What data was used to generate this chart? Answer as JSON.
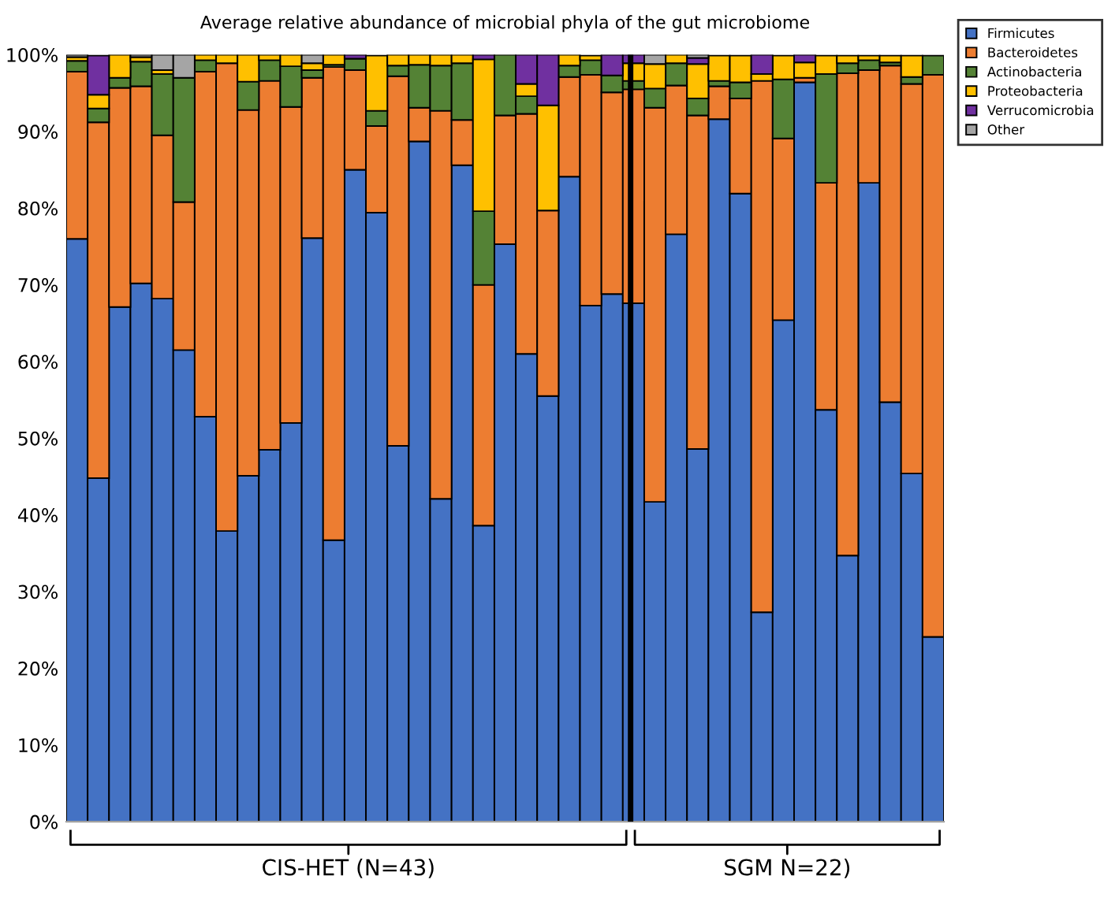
{
  "chart_data": {
    "type": "bar",
    "stacked": true,
    "title": "Average relative abundance of microbial phyla of the gut microbiome",
    "categories": [
      null,
      null,
      null,
      null,
      null,
      null,
      null,
      null,
      null,
      null,
      null,
      null,
      null,
      null,
      null,
      null,
      null,
      null,
      null,
      null,
      null,
      null,
      null,
      null,
      null,
      null,
      null,
      null,
      null,
      null,
      null,
      null,
      null,
      null,
      null,
      null,
      null,
      null,
      null,
      null,
      null
    ],
    "series": [
      {
        "name": "Firmicutes",
        "color": "#4472c4",
        "values": [
          76.0,
          44.8,
          67.1,
          70.2,
          68.2,
          61.5,
          52.8,
          37.9,
          45.1,
          48.5,
          52.0,
          76.1,
          36.7,
          85.0,
          79.4,
          49.0,
          88.7,
          42.1,
          85.6,
          38.6,
          75.3,
          61.0,
          55.5,
          84.1,
          67.3,
          68.8,
          67.6,
          41.7,
          76.6,
          48.6,
          91.6,
          81.9,
          27.3,
          65.4,
          96.4,
          53.7,
          34.7,
          83.3,
          54.7,
          45.4,
          24.1
        ]
      },
      {
        "name": "Bacteroidetes",
        "color": "#ed7d31",
        "values": [
          21.8,
          46.4,
          28.6,
          25.7,
          21.3,
          19.3,
          45.0,
          61.0,
          47.7,
          48.1,
          41.2,
          20.9,
          61.7,
          13.0,
          11.3,
          48.2,
          4.4,
          50.6,
          5.9,
          31.4,
          16.8,
          31.3,
          24.2,
          13.0,
          30.1,
          26.3,
          27.9,
          51.4,
          19.4,
          43.5,
          4.3,
          12.4,
          69.3,
          23.7,
          0.6,
          29.6,
          62.9,
          14.7,
          43.9,
          50.8,
          73.3
        ]
      },
      {
        "name": "Actinobacteria",
        "color": "#548235",
        "values": [
          1.4,
          1.8,
          1.3,
          3.2,
          8.0,
          16.2,
          1.5,
          0,
          3.7,
          2.7,
          5.3,
          1.0,
          0.3,
          1.5,
          2.0,
          1.4,
          5.6,
          5.9,
          7.4,
          9.6,
          7.9,
          2.3,
          0,
          1.5,
          1.9,
          2.2,
          1.1,
          2.5,
          2.9,
          2.2,
          0.7,
          2.1,
          0,
          7.7,
          0,
          14.2,
          1.3,
          1.3,
          0.4,
          0.9,
          2.5
        ]
      },
      {
        "name": "Proteobacteria",
        "color": "#ffc000",
        "values": [
          0.5,
          1.8,
          3.0,
          0.6,
          0.5,
          0,
          0.7,
          1.1,
          3.5,
          0.7,
          1.5,
          0.9,
          1.3,
          0,
          7.2,
          1.4,
          1.3,
          1.4,
          1.1,
          19.8,
          0,
          1.6,
          13.7,
          1.4,
          0.6,
          0,
          2.3,
          3.2,
          1.1,
          4.5,
          3.3,
          3.5,
          0.9,
          3.1,
          2.0,
          2.4,
          1.0,
          0.6,
          0.9,
          2.8,
          0
        ]
      },
      {
        "name": "Verrucomicrobia",
        "color": "#7030a0",
        "values": [
          0,
          5.1,
          0,
          0,
          0,
          0,
          0,
          0,
          0,
          0,
          0,
          0,
          0,
          0.5,
          0,
          0,
          0,
          0,
          0,
          0.6,
          0,
          3.8,
          6.6,
          0,
          0,
          2.7,
          1.1,
          0,
          0,
          0.8,
          0,
          0,
          2.5,
          0,
          1.0,
          0,
          0,
          0,
          0,
          0,
          0
        ]
      },
      {
        "name": "Other",
        "color": "#a5a5a5",
        "values": [
          0.3,
          0,
          0,
          0.3,
          2.0,
          3.0,
          0,
          0,
          0,
          0,
          0,
          1.1,
          0,
          0,
          0,
          0,
          0,
          0,
          0,
          0,
          0,
          0,
          0,
          0,
          0,
          0,
          0,
          1.2,
          0,
          0.4,
          0,
          0,
          0,
          0,
          0,
          0,
          0,
          0,
          0,
          0,
          0
        ]
      }
    ],
    "ylim": [
      0,
      100
    ],
    "yticks": [
      {
        "value": 0,
        "label": "0%"
      },
      {
        "value": 10,
        "label": "10%"
      },
      {
        "value": 20,
        "label": "20%"
      },
      {
        "value": 30,
        "label": "30%"
      },
      {
        "value": 40,
        "label": "40%"
      },
      {
        "value": 50,
        "label": "50%"
      },
      {
        "value": 60,
        "label": "60%"
      },
      {
        "value": 70,
        "label": "70%"
      },
      {
        "value": 80,
        "label": "80%"
      },
      {
        "value": 90,
        "label": "90%"
      },
      {
        "value": 100,
        "label": "100%"
      }
    ],
    "annotations": [
      "CIS-HET (N=43)",
      "SGM N=22)"
    ],
    "legend": "top right",
    "grid": false
  }
}
